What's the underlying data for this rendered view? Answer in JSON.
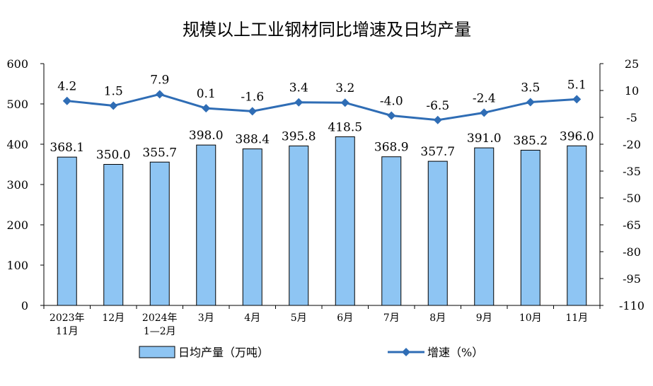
{
  "chart_data": {
    "type": "bar",
    "title": "规模以上工业钢材同比增速及日均产量",
    "categories": [
      [
        "2023年",
        "11月"
      ],
      [
        "12月"
      ],
      [
        "2024年",
        "1—2月"
      ],
      [
        "3月"
      ],
      [
        "4月"
      ],
      [
        "5月"
      ],
      [
        "6月"
      ],
      [
        "7月"
      ],
      [
        "8月"
      ],
      [
        "9月"
      ],
      [
        "10月"
      ],
      [
        "11月"
      ]
    ],
    "series": [
      {
        "name": "日均产量（万吨）",
        "type": "bar",
        "axis": "left",
        "color": "#8EC5F3",
        "values": [
          368.1,
          350.0,
          355.7,
          398.0,
          388.4,
          395.8,
          418.5,
          368.9,
          357.7,
          391.0,
          385.2,
          396.0
        ],
        "labels": [
          "368.1",
          "350.0",
          "355.7",
          "398.0",
          "388.4",
          "395.8",
          "418.5",
          "368.9",
          "357.7",
          "391.0",
          "385.2",
          "396.0"
        ]
      },
      {
        "name": "增速（%）",
        "type": "line",
        "axis": "right",
        "color": "#2F6DB5",
        "marker": "diamond",
        "values": [
          4.2,
          1.5,
          7.9,
          0.1,
          -1.6,
          3.4,
          3.2,
          -4.0,
          -6.5,
          -2.4,
          3.5,
          5.1
        ],
        "labels": [
          "4.2",
          "1.5",
          "7.9",
          "0.1",
          "-1.6",
          "3.4",
          "3.2",
          "-4.0",
          "-6.5",
          "-2.4",
          "3.5",
          "5.1"
        ]
      }
    ],
    "y_left": {
      "lim": [
        0,
        600
      ],
      "ticks": [
        "0",
        "100",
        "200",
        "300",
        "400",
        "500",
        "600"
      ]
    },
    "y_right": {
      "lim": [
        -110,
        25
      ],
      "ticks": [
        "-110",
        "-95",
        "-80",
        "-65",
        "-50",
        "-35",
        "-20",
        "-5",
        "10",
        "25"
      ]
    },
    "grid": false,
    "legend": "bottom"
  }
}
